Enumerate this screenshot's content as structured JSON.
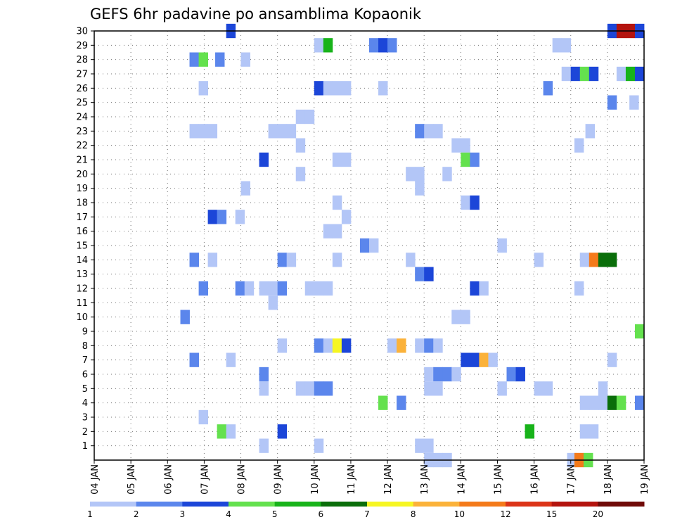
{
  "chart_data": {
    "type": "heatmap",
    "title": "GEFS 6hr padavine po ansamblima Kopaonik",
    "xlabel": "",
    "ylabel": "",
    "x_start_day": 4,
    "x_end_day": 19,
    "x_tick_labels": [
      "04 JAN",
      "05 JAN",
      "06 JAN",
      "07 JAN",
      "08 JAN",
      "09 JAN",
      "10 JAN",
      "11 JAN",
      "12 JAN",
      "13 JAN",
      "14 JAN",
      "15 JAN",
      "16 JAN",
      "17 JAN",
      "18 JAN",
      "19 JAN"
    ],
    "y_tick_labels": [
      "1",
      "2",
      "3",
      "4",
      "5",
      "6",
      "7",
      "8",
      "9",
      "10",
      "11",
      "12",
      "13",
      "14",
      "15",
      "16",
      "17",
      "18",
      "19",
      "20",
      "21",
      "22",
      "23",
      "24",
      "25",
      "26",
      "27",
      "28",
      "29",
      "30"
    ],
    "ylim": [
      0,
      30
    ],
    "grid": true,
    "colorbar": {
      "labels": [
        "1",
        "2",
        "3",
        "4",
        "5",
        "6",
        "7",
        "8",
        "10",
        "12",
        "15",
        "20"
      ],
      "colors": [
        "#b3c6f7",
        "#5b86ec",
        "#1c46d8",
        "#64e14e",
        "#18b31a",
        "#0a6e0a",
        "#f6f622",
        "#fbb23a",
        "#f47a1a",
        "#dc3418",
        "#b4140e",
        "#700a08"
      ]
    },
    "cells": [
      {
        "member": 30,
        "day": 7.6,
        "value": 3
      },
      {
        "member": 30,
        "day": 18.0,
        "value": 3
      },
      {
        "member": 30,
        "day": 18.25,
        "value": 15
      },
      {
        "member": 30,
        "day": 18.5,
        "value": 15
      },
      {
        "member": 30,
        "day": 18.75,
        "value": 3
      },
      {
        "member": 29,
        "day": 10.0,
        "value": 1
      },
      {
        "member": 29,
        "day": 10.25,
        "value": 5
      },
      {
        "member": 29,
        "day": 11.5,
        "value": 2
      },
      {
        "member": 29,
        "day": 11.75,
        "value": 3
      },
      {
        "member": 29,
        "day": 12.0,
        "value": 2
      },
      {
        "member": 29,
        "day": 16.5,
        "value": 1
      },
      {
        "member": 29,
        "day": 16.75,
        "value": 1
      },
      {
        "member": 28,
        "day": 6.6,
        "value": 2
      },
      {
        "member": 28,
        "day": 6.85,
        "value": 4
      },
      {
        "member": 28,
        "day": 7.3,
        "value": 2
      },
      {
        "member": 28,
        "day": 8.0,
        "value": 1
      },
      {
        "member": 27,
        "day": 16.75,
        "value": 1
      },
      {
        "member": 27,
        "day": 17.0,
        "value": 3
      },
      {
        "member": 27,
        "day": 17.25,
        "value": 4
      },
      {
        "member": 27,
        "day": 17.5,
        "value": 3
      },
      {
        "member": 27,
        "day": 18.25,
        "value": 1
      },
      {
        "member": 27,
        "day": 18.5,
        "value": 5
      },
      {
        "member": 27,
        "day": 18.75,
        "value": 3
      },
      {
        "member": 26,
        "day": 6.85,
        "value": 1
      },
      {
        "member": 26,
        "day": 10.0,
        "value": 3
      },
      {
        "member": 26,
        "day": 10.25,
        "value": 1
      },
      {
        "member": 26,
        "day": 10.5,
        "value": 1
      },
      {
        "member": 26,
        "day": 10.75,
        "value": 1
      },
      {
        "member": 26,
        "day": 11.75,
        "value": 1
      },
      {
        "member": 26,
        "day": 16.25,
        "value": 2
      },
      {
        "member": 25,
        "day": 18.0,
        "value": 2
      },
      {
        "member": 25,
        "day": 18.6,
        "value": 1
      },
      {
        "member": 24,
        "day": 9.5,
        "value": 1
      },
      {
        "member": 24,
        "day": 9.75,
        "value": 1
      },
      {
        "member": 23,
        "day": 6.6,
        "value": 1
      },
      {
        "member": 23,
        "day": 6.85,
        "value": 1
      },
      {
        "member": 23,
        "day": 7.1,
        "value": 1
      },
      {
        "member": 23,
        "day": 8.75,
        "value": 1
      },
      {
        "member": 23,
        "day": 9.0,
        "value": 1
      },
      {
        "member": 23,
        "day": 9.25,
        "value": 1
      },
      {
        "member": 23,
        "day": 12.75,
        "value": 2
      },
      {
        "member": 23,
        "day": 13.0,
        "value": 1
      },
      {
        "member": 23,
        "day": 13.25,
        "value": 1
      },
      {
        "member": 23,
        "day": 17.4,
        "value": 1
      },
      {
        "member": 22,
        "day": 9.5,
        "value": 1
      },
      {
        "member": 22,
        "day": 13.75,
        "value": 1
      },
      {
        "member": 22,
        "day": 14.0,
        "value": 1
      },
      {
        "member": 22,
        "day": 17.1,
        "value": 1
      },
      {
        "member": 21,
        "day": 8.5,
        "value": 3
      },
      {
        "member": 21,
        "day": 10.5,
        "value": 1
      },
      {
        "member": 21,
        "day": 10.75,
        "value": 1
      },
      {
        "member": 21,
        "day": 14.0,
        "value": 4
      },
      {
        "member": 21,
        "day": 14.25,
        "value": 2
      },
      {
        "member": 20,
        "day": 9.5,
        "value": 1
      },
      {
        "member": 20,
        "day": 12.5,
        "value": 1
      },
      {
        "member": 20,
        "day": 12.75,
        "value": 1
      },
      {
        "member": 20,
        "day": 13.5,
        "value": 1
      },
      {
        "member": 19,
        "day": 8.0,
        "value": 1
      },
      {
        "member": 19,
        "day": 12.75,
        "value": 1
      },
      {
        "member": 18,
        "day": 10.5,
        "value": 1
      },
      {
        "member": 18,
        "day": 14.0,
        "value": 1
      },
      {
        "member": 18,
        "day": 14.25,
        "value": 3
      },
      {
        "member": 17,
        "day": 7.1,
        "value": 3
      },
      {
        "member": 17,
        "day": 7.35,
        "value": 2
      },
      {
        "member": 17,
        "day": 7.85,
        "value": 1
      },
      {
        "member": 17,
        "day": 10.75,
        "value": 1
      },
      {
        "member": 16,
        "day": 10.25,
        "value": 1
      },
      {
        "member": 16,
        "day": 10.5,
        "value": 1
      },
      {
        "member": 15,
        "day": 11.25,
        "value": 2
      },
      {
        "member": 15,
        "day": 11.5,
        "value": 1
      },
      {
        "member": 15,
        "day": 15.0,
        "value": 1
      },
      {
        "member": 14,
        "day": 6.6,
        "value": 2
      },
      {
        "member": 14,
        "day": 7.1,
        "value": 1
      },
      {
        "member": 14,
        "day": 9.0,
        "value": 2
      },
      {
        "member": 14,
        "day": 9.25,
        "value": 1
      },
      {
        "member": 14,
        "day": 10.5,
        "value": 1
      },
      {
        "member": 14,
        "day": 12.5,
        "value": 1
      },
      {
        "member": 14,
        "day": 16.0,
        "value": 1
      },
      {
        "member": 14,
        "day": 17.25,
        "value": 1
      },
      {
        "member": 14,
        "day": 17.5,
        "value": 10
      },
      {
        "member": 14,
        "day": 17.75,
        "value": 6
      },
      {
        "member": 14,
        "day": 18.0,
        "value": 6
      },
      {
        "member": 13,
        "day": 12.75,
        "value": 2
      },
      {
        "member": 13,
        "day": 13.0,
        "value": 3
      },
      {
        "member": 12,
        "day": 6.85,
        "value": 2
      },
      {
        "member": 12,
        "day": 7.85,
        "value": 2
      },
      {
        "member": 12,
        "day": 8.1,
        "value": 1
      },
      {
        "member": 12,
        "day": 8.5,
        "value": 1
      },
      {
        "member": 12,
        "day": 8.75,
        "value": 1
      },
      {
        "member": 12,
        "day": 9.0,
        "value": 2
      },
      {
        "member": 12,
        "day": 9.75,
        "value": 1
      },
      {
        "member": 12,
        "day": 10.0,
        "value": 1
      },
      {
        "member": 12,
        "day": 10.25,
        "value": 1
      },
      {
        "member": 12,
        "day": 14.25,
        "value": 3
      },
      {
        "member": 12,
        "day": 14.5,
        "value": 1
      },
      {
        "member": 12,
        "day": 17.1,
        "value": 1
      },
      {
        "member": 11,
        "day": 8.75,
        "value": 1
      },
      {
        "member": 10,
        "day": 6.35,
        "value": 2
      },
      {
        "member": 10,
        "day": 13.75,
        "value": 1
      },
      {
        "member": 10,
        "day": 14.0,
        "value": 1
      },
      {
        "member": 9,
        "day": 18.75,
        "value": 4
      },
      {
        "member": 8,
        "day": 9.0,
        "value": 1
      },
      {
        "member": 8,
        "day": 10.0,
        "value": 2
      },
      {
        "member": 8,
        "day": 10.25,
        "value": 1
      },
      {
        "member": 8,
        "day": 10.5,
        "value": 7
      },
      {
        "member": 8,
        "day": 10.75,
        "value": 3
      },
      {
        "member": 8,
        "day": 12.0,
        "value": 1
      },
      {
        "member": 8,
        "day": 12.25,
        "value": 8
      },
      {
        "member": 8,
        "day": 12.75,
        "value": 1
      },
      {
        "member": 8,
        "day": 13.0,
        "value": 2
      },
      {
        "member": 8,
        "day": 13.25,
        "value": 1
      },
      {
        "member": 7,
        "day": 6.6,
        "value": 2
      },
      {
        "member": 7,
        "day": 7.6,
        "value": 1
      },
      {
        "member": 7,
        "day": 14.0,
        "value": 3
      },
      {
        "member": 7,
        "day": 14.25,
        "value": 3
      },
      {
        "member": 7,
        "day": 14.5,
        "value": 8
      },
      {
        "member": 7,
        "day": 14.75,
        "value": 1
      },
      {
        "member": 7,
        "day": 18.0,
        "value": 1
      },
      {
        "member": 6,
        "day": 8.5,
        "value": 2
      },
      {
        "member": 6,
        "day": 13.0,
        "value": 1
      },
      {
        "member": 6,
        "day": 13.25,
        "value": 2
      },
      {
        "member": 6,
        "day": 13.5,
        "value": 2
      },
      {
        "member": 6,
        "day": 13.75,
        "value": 1
      },
      {
        "member": 6,
        "day": 15.25,
        "value": 2
      },
      {
        "member": 6,
        "day": 15.5,
        "value": 3
      },
      {
        "member": 5,
        "day": 8.5,
        "value": 1
      },
      {
        "member": 5,
        "day": 9.5,
        "value": 1
      },
      {
        "member": 5,
        "day": 9.75,
        "value": 1
      },
      {
        "member": 5,
        "day": 10.0,
        "value": 2
      },
      {
        "member": 5,
        "day": 10.25,
        "value": 2
      },
      {
        "member": 5,
        "day": 13.0,
        "value": 1
      },
      {
        "member": 5,
        "day": 13.25,
        "value": 1
      },
      {
        "member": 5,
        "day": 15.0,
        "value": 1
      },
      {
        "member": 5,
        "day": 16.0,
        "value": 1
      },
      {
        "member": 5,
        "day": 16.25,
        "value": 1
      },
      {
        "member": 5,
        "day": 17.75,
        "value": 1
      },
      {
        "member": 4,
        "day": 11.75,
        "value": 4
      },
      {
        "member": 4,
        "day": 12.25,
        "value": 2
      },
      {
        "member": 4,
        "day": 17.25,
        "value": 1
      },
      {
        "member": 4,
        "day": 17.5,
        "value": 1
      },
      {
        "member": 4,
        "day": 17.75,
        "value": 1
      },
      {
        "member": 4,
        "day": 18.0,
        "value": 6
      },
      {
        "member": 4,
        "day": 18.25,
        "value": 4
      },
      {
        "member": 4,
        "day": 18.75,
        "value": 2
      },
      {
        "member": 3,
        "day": 6.85,
        "value": 1
      },
      {
        "member": 2,
        "day": 7.35,
        "value": 4
      },
      {
        "member": 2,
        "day": 7.6,
        "value": 1
      },
      {
        "member": 2,
        "day": 9.0,
        "value": 3
      },
      {
        "member": 2,
        "day": 15.75,
        "value": 5
      },
      {
        "member": 2,
        "day": 17.25,
        "value": 1
      },
      {
        "member": 2,
        "day": 17.5,
        "value": 1
      },
      {
        "member": 1,
        "day": 8.5,
        "value": 1
      },
      {
        "member": 1,
        "day": 10.0,
        "value": 1
      },
      {
        "member": 1,
        "day": 12.75,
        "value": 1
      },
      {
        "member": 1,
        "day": 13.0,
        "value": 1
      },
      {
        "member": 0,
        "day": 13.0,
        "value": 1
      },
      {
        "member": 0,
        "day": 13.25,
        "value": 1
      },
      {
        "member": 0,
        "day": 13.5,
        "value": 1
      },
      {
        "member": 0,
        "day": 16.9,
        "value": 1
      },
      {
        "member": 0,
        "day": 17.1,
        "value": 10
      },
      {
        "member": 0,
        "day": 17.35,
        "value": 4
      }
    ]
  }
}
